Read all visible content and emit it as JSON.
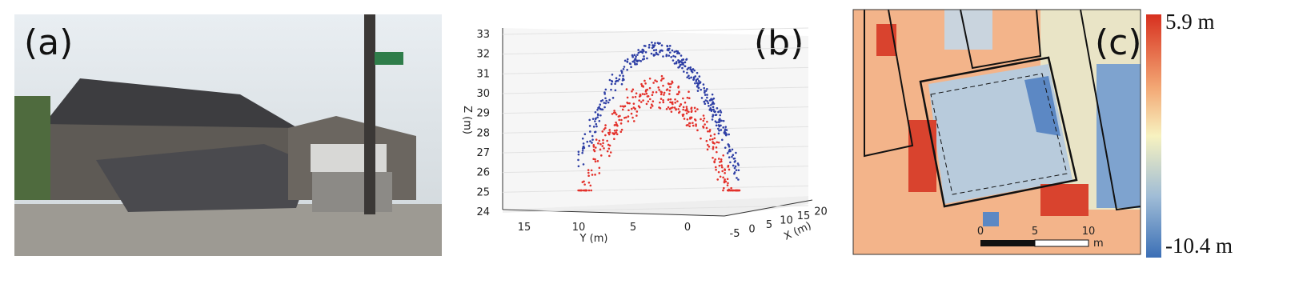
{
  "panels": {
    "a": {
      "label": "(a)"
    },
    "b": {
      "label": "(b)",
      "z_axis": {
        "label": "Z (m)",
        "ticks": [
          24,
          25,
          26,
          27,
          28,
          29,
          30,
          31,
          32,
          33
        ]
      },
      "y_axis": {
        "label": "Y (m)",
        "ticks": [
          15,
          10,
          5,
          0
        ]
      },
      "x_axis": {
        "label": "X (m)",
        "ticks": [
          -5,
          0,
          5,
          10,
          15,
          20
        ]
      }
    },
    "c": {
      "label": "(c)",
      "colorbar": {
        "max_label": "5.9 m",
        "min_label": "-10.4 m"
      },
      "scale_bar": {
        "ticks": [
          0,
          5,
          10
        ],
        "unit": "m"
      }
    }
  }
}
